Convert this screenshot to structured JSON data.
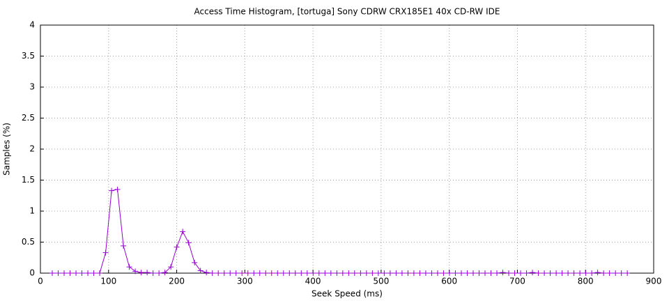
{
  "chart_data": {
    "type": "line",
    "title": "Access Time Histogram, [tortuga] Sony CDRW CRX185E1 40x CD-RW IDE",
    "x_label": "Seek Speed (ms)",
    "y_label": "Samples (%)",
    "xlim": [
      0,
      900
    ],
    "xticks": [
      0,
      100,
      200,
      300,
      400,
      500,
      600,
      700,
      800,
      900
    ],
    "ylim": [
      0,
      4
    ],
    "yticks": [
      0,
      0.5,
      1,
      1.5,
      2,
      2.5,
      3,
      3.5,
      4
    ],
    "grid": true,
    "series": [
      {
        "color": "#9400d3",
        "x": [
          17.4,
          26.1,
          34.8,
          43.5,
          52.2,
          60.9,
          69.6,
          78.3,
          87,
          95.7,
          104.4,
          113.1,
          121.8,
          130.5,
          139.2,
          147.9,
          156.6,
          165.3,
          174,
          182.7,
          191.4,
          200.1,
          208.8,
          217.5,
          226.2,
          234.9,
          243.6,
          252.3,
          261,
          269.7,
          278.4,
          287.1,
          295.8,
          304.5,
          313.2,
          321.9,
          330.6,
          339.3,
          348,
          356.7,
          365.4,
          374.1,
          382.8,
          391.5,
          400.2,
          408.9,
          417.6,
          426.3,
          435,
          443.7,
          452.4,
          461.1,
          469.8,
          478.5,
          487.2,
          495.9,
          504.6,
          513.3,
          522,
          530.7,
          539.4,
          548.1,
          556.8,
          565.5,
          574.2,
          582.9,
          591.6,
          600.3,
          609,
          617.7,
          626.4,
          635.1,
          643.8,
          652.5,
          661.2,
          669.9,
          678.6,
          687.3,
          696,
          704.7,
          713.4,
          722.1,
          730.8,
          739.5,
          748.2,
          756.9,
          765.6,
          774.3,
          783,
          791.7,
          800.4,
          809.1,
          817.8,
          826.5,
          835.2,
          843.9,
          852.6,
          861.3
        ],
        "values": [
          0,
          0,
          0,
          0,
          0,
          0,
          0,
          0,
          0,
          0.33,
          1.33,
          1.35,
          0.44,
          0.1,
          0.03,
          0.01,
          0.01,
          0,
          0,
          0.01,
          0.1,
          0.42,
          0.67,
          0.49,
          0.17,
          0.04,
          0.01,
          0,
          0,
          0,
          0,
          0,
          0,
          0,
          0,
          0,
          0,
          0,
          0,
          0,
          0,
          0,
          0,
          0,
          0,
          0,
          0,
          0,
          0,
          0,
          0,
          0,
          0,
          0,
          0,
          0,
          0,
          0,
          0,
          0,
          0,
          0,
          0,
          0,
          0,
          0,
          0,
          0,
          0,
          0,
          0,
          0,
          0,
          0,
          0,
          0,
          0.01,
          0,
          0,
          0,
          0,
          0.01,
          0,
          0,
          0,
          0,
          0,
          0,
          0,
          0,
          0,
          0,
          0.01,
          0,
          0,
          0,
          0,
          0
        ]
      }
    ]
  }
}
